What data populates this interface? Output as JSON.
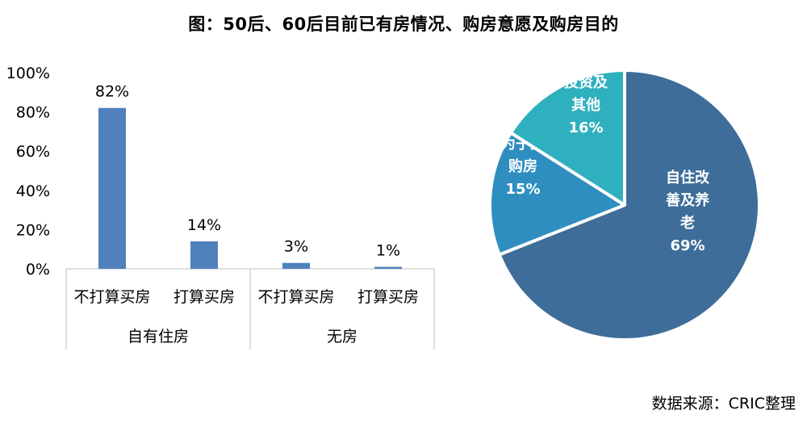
{
  "title": "图：50后、60后目前已有房情况、购房意愿及购房目的",
  "source": "数据来源：CRIC整理",
  "chart_data": [
    {
      "type": "bar",
      "categories": [
        "不打算买房",
        "打算买房",
        "不打算买房",
        "打算买房"
      ],
      "groups": [
        {
          "label": "自有住房",
          "span": 2
        },
        {
          "label": "无房",
          "span": 2
        }
      ],
      "values": [
        82,
        14,
        3,
        1
      ],
      "value_labels": [
        "82%",
        "14%",
        "3%",
        "1%"
      ],
      "ylim": [
        0,
        100
      ],
      "yticks": [
        "0%",
        "20%",
        "40%",
        "60%",
        "80%",
        "100%"
      ],
      "color": "#4f81bd",
      "grid": false
    },
    {
      "type": "pie",
      "slices": [
        {
          "label_lines": [
            "自住改",
            "善及养",
            "老"
          ],
          "pct_text": "69%",
          "value": 69,
          "color": "#3e6d99"
        },
        {
          "label_lines": [
            "为子女",
            "购房"
          ],
          "pct_text": "15%",
          "value": 15,
          "color": "#2e8ec0"
        },
        {
          "label_lines": [
            "投资及",
            "其他"
          ],
          "pct_text": "16%",
          "value": 16,
          "color": "#2fb0be"
        }
      ],
      "start_angle_deg": 0,
      "direction": "clockwise",
      "edge_color": "#ffffff"
    }
  ]
}
